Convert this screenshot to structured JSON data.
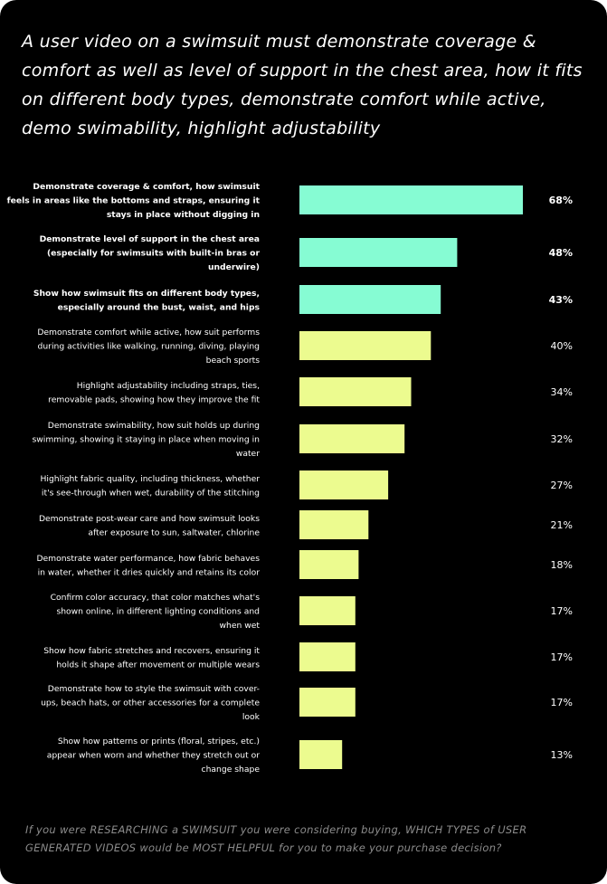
{
  "headline": "A user video on a swimsuit must demonstrate coverage & comfort as well as level of support in the chest area, how it fits on different body types, demonstrate comfort while active, demo swimability, highlight adjustability",
  "footer": "If you were RESEARCHING a SWIMSUIT you were considering buying, WHICH TYPES of USER GENERATED VIDEOS would be MOST HELPFUL for you to make your purchase decision?",
  "colors": {
    "background": "#000000",
    "highlight_bar": "#86fcd3",
    "regular_bar": "#ecfb8f",
    "label_text": "#ffffff"
  },
  "chart_data": {
    "type": "bar",
    "orientation": "horizontal",
    "value_suffix": "%",
    "xlim": [
      0,
      68
    ],
    "categories": [
      [
        "Demonstrate coverage & comfort, how swimsuit",
        "feels in areas like the bottoms and straps, ensuring it",
        "stays in place without digging in"
      ],
      [
        "Demonstrate level of support in the chest area",
        "(especially for swimsuits with built-in bras or",
        "underwire)"
      ],
      [
        "Show how swimsuit fits on different body types,",
        "especially around the bust, waist, and hips"
      ],
      [
        "Demonstrate comfort while active, how suit performs",
        "during activities like walking, running, diving, playing",
        "beach sports"
      ],
      [
        "Highlight adjustability including straps, ties,",
        "removable pads, showing how they improve the fit"
      ],
      [
        "Demonstrate swimability, how suit holds up during",
        "swimming, showing it staying in place when moving in",
        "water"
      ],
      [
        "Highlight fabric quality, including thickness, whether",
        "it's see-through when wet, durability of the stitching"
      ],
      [
        "Demonstrate post-wear care and how swimsuit looks",
        "after exposure to sun, saltwater, chlorine"
      ],
      [
        "Demonstrate water performance, how fabric behaves",
        "in water, whether it dries quickly and retains its color"
      ],
      [
        "Confirm color accuracy, that color matches what's",
        "shown online, in different lighting conditions and",
        "when wet"
      ],
      [
        "Show how fabric stretches and recovers, ensuring it",
        "holds it shape after movement or multiple wears"
      ],
      [
        "Demonstrate how to style the swimsuit with cover-",
        "ups, beach hats, or other accessories for a complete",
        "look"
      ],
      [
        "Show how patterns or prints (floral, stripes, etc.)",
        "appear when worn and whether they stretch out or",
        "change shape"
      ]
    ],
    "values": [
      68,
      48,
      43,
      40,
      34,
      32,
      27,
      21,
      18,
      17,
      17,
      17,
      13
    ],
    "highlighted": [
      true,
      true,
      true,
      false,
      false,
      false,
      false,
      false,
      false,
      false,
      false,
      false,
      false
    ]
  }
}
